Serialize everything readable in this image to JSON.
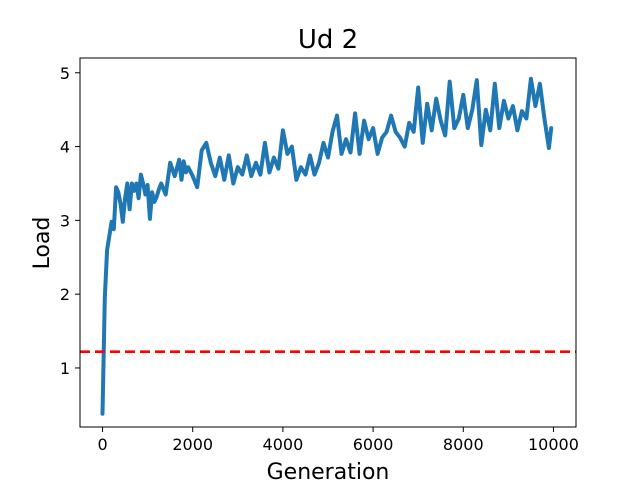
{
  "chart_data": {
    "type": "line",
    "title": "Ud 2",
    "xlabel": "Generation",
    "ylabel": "Load",
    "xlim": [
      -500,
      10500
    ],
    "ylim": [
      0.2,
      5.2
    ],
    "xticks": [
      0,
      2000,
      4000,
      6000,
      8000,
      10000
    ],
    "yticks": [
      1,
      2,
      3,
      4,
      5
    ],
    "xtick_labels": [
      "0",
      "2000",
      "4000",
      "6000",
      "8000",
      "10000"
    ],
    "ytick_labels": [
      "1",
      "2",
      "3",
      "4",
      "5"
    ],
    "grid": false,
    "series": [
      {
        "color": "#1f77b4",
        "style": "solid",
        "x": [
          0,
          50,
          100,
          200,
          250,
          300,
          350,
          400,
          450,
          500,
          550,
          600,
          650,
          700,
          750,
          800,
          850,
          900,
          950,
          1000,
          1050,
          1100,
          1150,
          1200,
          1250,
          1300,
          1400,
          1500,
          1600,
          1700,
          1750,
          1800,
          1850,
          1900,
          2000,
          2100,
          2200,
          2300,
          2400,
          2500,
          2600,
          2700,
          2800,
          2900,
          3000,
          3100,
          3200,
          3300,
          3400,
          3500,
          3600,
          3700,
          3800,
          3900,
          4000,
          4100,
          4200,
          4300,
          4400,
          4500,
          4600,
          4700,
          4800,
          4900,
          5000,
          5100,
          5200,
          5300,
          5400,
          5500,
          5600,
          5700,
          5800,
          5900,
          6000,
          6100,
          6200,
          6300,
          6400,
          6500,
          6600,
          6700,
          6800,
          6900,
          7000,
          7100,
          7200,
          7300,
          7400,
          7500,
          7600,
          7700,
          7800,
          7900,
          8000,
          8100,
          8200,
          8300,
          8400,
          8500,
          8600,
          8700,
          8800,
          8900,
          9000,
          9100,
          9200,
          9300,
          9400,
          9500,
          9600,
          9700,
          9800,
          9900,
          9950
        ],
        "y": [
          0.38,
          1.95,
          2.6,
          2.98,
          2.88,
          3.45,
          3.38,
          3.22,
          2.98,
          3.3,
          3.5,
          3.15,
          3.5,
          3.4,
          3.5,
          3.3,
          3.62,
          3.5,
          3.35,
          3.48,
          3.02,
          3.38,
          3.25,
          3.32,
          3.42,
          3.5,
          3.35,
          3.78,
          3.6,
          3.82,
          3.55,
          3.8,
          3.65,
          3.72,
          3.6,
          3.45,
          3.95,
          4.05,
          3.78,
          3.6,
          3.85,
          3.55,
          3.88,
          3.5,
          3.72,
          3.62,
          3.88,
          3.6,
          3.78,
          3.62,
          4.05,
          3.65,
          3.85,
          3.7,
          4.22,
          3.9,
          4.0,
          3.55,
          3.72,
          3.62,
          3.88,
          3.62,
          3.78,
          4.05,
          3.85,
          4.2,
          4.42,
          3.9,
          4.1,
          3.92,
          4.45,
          3.9,
          4.35,
          4.1,
          4.25,
          3.9,
          4.12,
          4.2,
          4.42,
          4.2,
          4.12,
          4.0,
          4.32,
          4.2,
          4.8,
          4.05,
          4.58,
          4.22,
          4.65,
          4.35,
          4.15,
          4.88,
          4.25,
          4.38,
          4.7,
          4.25,
          4.5,
          4.9,
          4.02,
          4.5,
          4.22,
          4.85,
          4.25,
          4.62,
          4.38,
          4.55,
          4.22,
          4.48,
          4.38,
          4.92,
          4.55,
          4.85,
          4.38,
          3.98,
          4.25
        ]
      },
      {
        "color": "#ff0000",
        "style": "dashed",
        "x": [
          -500,
          10500
        ],
        "y": [
          1.22,
          1.22
        ]
      }
    ]
  }
}
